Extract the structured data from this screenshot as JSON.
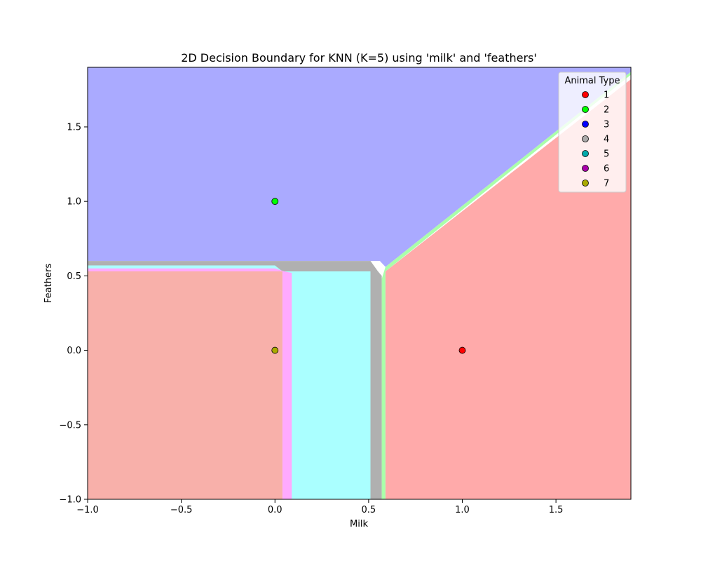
{
  "chart_data": {
    "type": "scatter",
    "title": "2D Decision Boundary for KNN (K=5) using 'milk' and 'feathers'",
    "xlabel": "Milk",
    "ylabel": "Feathers",
    "xlim": [
      -1.0,
      1.9
    ],
    "ylim": [
      -1.0,
      1.9
    ],
    "x_ticks": [
      -1.0,
      -0.5,
      0.0,
      0.5,
      1.0,
      1.5
    ],
    "y_ticks": [
      -1.0,
      -0.5,
      0.0,
      0.5,
      1.0,
      1.5
    ],
    "x_tick_labels": [
      "−1.0",
      "−0.5",
      "0.0",
      "0.5",
      "1.0",
      "1.5"
    ],
    "y_tick_labels": [
      "−1.0",
      "−0.5",
      "0.0",
      "0.5",
      "1.0",
      "1.5"
    ],
    "grid": false,
    "legend": {
      "title": "Animal Type",
      "placement": "top-right",
      "entries": [
        {
          "label": "1",
          "color": "#ff0000"
        },
        {
          "label": "2",
          "color": "#00ff00"
        },
        {
          "label": "3",
          "color": "#0000ff"
        },
        {
          "label": "4",
          "color": "#aaaaaa"
        },
        {
          "label": "5",
          "color": "#00aaaa"
        },
        {
          "label": "6",
          "color": "#aa00aa"
        },
        {
          "label": "7",
          "color": "#aaaa00"
        }
      ]
    },
    "points": [
      {
        "x": 0.0,
        "y": 1.0,
        "class": "2",
        "color": "#00ff00"
      },
      {
        "x": 0.0,
        "y": 0.0,
        "class": "7",
        "color": "#aaaa00"
      },
      {
        "x": 1.0,
        "y": 0.0,
        "class": "1",
        "color": "#ff0000"
      }
    ],
    "regions": [
      {
        "class": "3",
        "color": "#aaaaff",
        "polygon": [
          [
            -1.0,
            1.9
          ],
          [
            1.9,
            1.9
          ],
          [
            1.9,
            1.87
          ],
          [
            0.59,
            0.56
          ],
          [
            0.56,
            0.6
          ],
          [
            -1.0,
            0.6
          ]
        ]
      },
      {
        "class": "4",
        "color": "#b0b0b0",
        "polygon": [
          [
            -1.0,
            0.6
          ],
          [
            0.51,
            0.6
          ],
          [
            0.55,
            0.53
          ],
          [
            0.55,
            -1.0
          ],
          [
            0.51,
            -1.0
          ],
          [
            0.51,
            0.53
          ],
          [
            -1.0,
            0.53
          ]
        ]
      },
      {
        "class": "5",
        "color": "#aaffff",
        "polygon": [
          [
            -1.0,
            0.57
          ],
          [
            0.0,
            0.57
          ],
          [
            0.04,
            0.53
          ],
          [
            0.51,
            0.53
          ],
          [
            0.51,
            -1.0
          ],
          [
            0.04,
            -1.0
          ],
          [
            0.04,
            0.52
          ],
          [
            -1.0,
            0.52
          ]
        ]
      },
      {
        "class": "6",
        "color": "#ffaaff",
        "polygon": [
          [
            -1.0,
            0.55
          ],
          [
            0.0,
            0.55
          ],
          [
            0.05,
            0.53
          ],
          [
            0.09,
            0.52
          ],
          [
            0.09,
            -1.0
          ],
          [
            0.04,
            -1.0
          ],
          [
            0.04,
            0.53
          ],
          [
            -1.0,
            0.53
          ]
        ]
      },
      {
        "class": "7",
        "color": "#f8b0aa",
        "polygon": [
          [
            -1.0,
            0.53
          ],
          [
            0.04,
            0.53
          ],
          [
            0.04,
            -1.0
          ],
          [
            -1.0,
            -1.0
          ]
        ]
      },
      {
        "class": "5",
        "color": "#aaffff",
        "polygon": [
          [
            0.09,
            0.52
          ],
          [
            0.51,
            0.52
          ],
          [
            0.51,
            -1.0
          ],
          [
            0.09,
            -1.0
          ]
        ]
      },
      {
        "class": "4",
        "color": "#b0b0b0",
        "polygon": [
          [
            0.51,
            0.53
          ],
          [
            0.55,
            0.53
          ],
          [
            0.57,
            0.5
          ],
          [
            0.57,
            -1.0
          ],
          [
            0.51,
            -1.0
          ]
        ]
      },
      {
        "class": "2",
        "color": "#aaffaa",
        "polygon": [
          [
            0.57,
            0.48
          ],
          [
            0.59,
            0.56
          ],
          [
            1.9,
            1.87
          ],
          [
            1.9,
            1.85
          ],
          [
            0.59,
            0.53
          ],
          [
            0.59,
            -1.0
          ],
          [
            0.57,
            -1.0
          ]
        ]
      },
      {
        "class": "1",
        "color": "#ffaaaa",
        "polygon": [
          [
            0.59,
            0.53
          ],
          [
            1.9,
            1.82
          ],
          [
            1.9,
            -1.0
          ],
          [
            0.59,
            -1.0
          ]
        ]
      }
    ]
  }
}
